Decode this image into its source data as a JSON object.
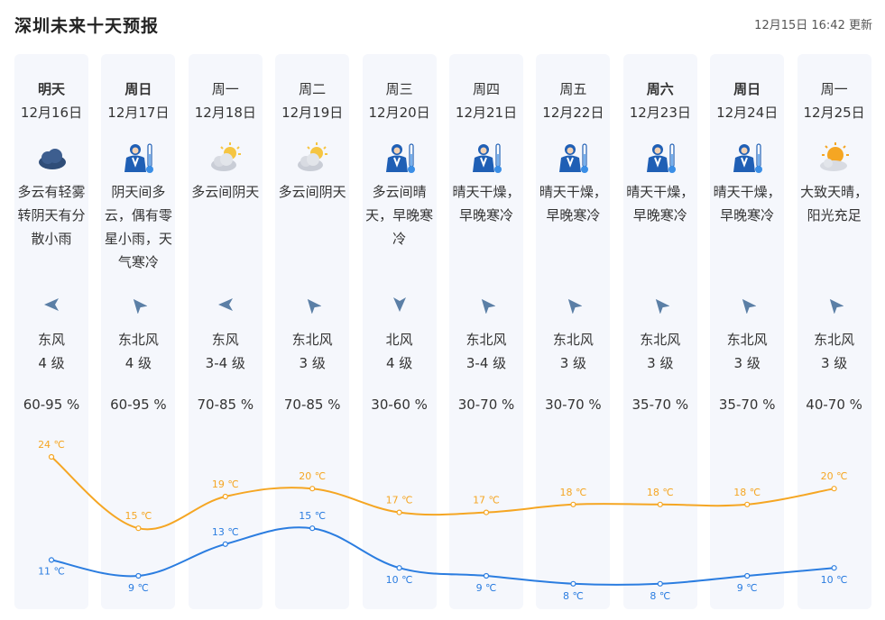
{
  "header": {
    "title": "深圳未来十天预报",
    "updated": "12月15日 16:42 更新"
  },
  "colors": {
    "high": "#f5a623",
    "low": "#2b7de0",
    "column_bg": "#f5f7fc",
    "arrow": "#5b7fa6"
  },
  "days": [
    {
      "day": "明天",
      "bold": true,
      "date": "12月16日",
      "icon": "cloudy-icon",
      "desc": "多云有轻雾转阴天有分散小雨",
      "wind_dir": "东风",
      "wind_level": "4 级",
      "humidity": "60-95 %",
      "arrow_rot": 0
    },
    {
      "day": "周日",
      "bold": true,
      "date": "12月17日",
      "icon": "cold-weather-icon",
      "desc": "阴天间多云，偶有零星小雨，天气寒冷",
      "wind_dir": "东北风",
      "wind_level": "4 级",
      "humidity": "60-95 %",
      "arrow_rot": 1
    },
    {
      "day": "周一",
      "bold": false,
      "date": "12月18日",
      "icon": "partly-cloudy-icon",
      "desc": "多云间阴天",
      "wind_dir": "东风",
      "wind_level": "3-4 级",
      "humidity": "70-85 %",
      "arrow_rot": 0
    },
    {
      "day": "周二",
      "bold": false,
      "date": "12月19日",
      "icon": "partly-cloudy-icon",
      "desc": "多云间阴天",
      "wind_dir": "东北风",
      "wind_level": "3 级",
      "humidity": "70-85 %",
      "arrow_rot": 1
    },
    {
      "day": "周三",
      "bold": false,
      "date": "12月20日",
      "icon": "cold-weather-icon",
      "desc": "多云间晴天，早晚寒冷",
      "wind_dir": "北风",
      "wind_level": "4 级",
      "humidity": "30-60 %",
      "arrow_rot": 2
    },
    {
      "day": "周四",
      "bold": false,
      "date": "12月21日",
      "icon": "cold-weather-icon",
      "desc": "晴天干燥，早晚寒冷",
      "wind_dir": "东北风",
      "wind_level": "3-4 级",
      "humidity": "30-70 %",
      "arrow_rot": 1
    },
    {
      "day": "周五",
      "bold": false,
      "date": "12月22日",
      "icon": "cold-weather-icon",
      "desc": "晴天干燥，早晚寒冷",
      "wind_dir": "东北风",
      "wind_level": "3 级",
      "humidity": "30-70 %",
      "arrow_rot": 1
    },
    {
      "day": "周六",
      "bold": true,
      "date": "12月23日",
      "icon": "cold-weather-icon",
      "desc": "晴天干燥，早晚寒冷",
      "wind_dir": "东北风",
      "wind_level": "3 级",
      "humidity": "35-70 %",
      "arrow_rot": 1
    },
    {
      "day": "周日",
      "bold": true,
      "date": "12月24日",
      "icon": "cold-weather-icon",
      "desc": "晴天干燥，早晚寒冷",
      "wind_dir": "东北风",
      "wind_level": "3 级",
      "humidity": "35-70 %",
      "arrow_rot": 1
    },
    {
      "day": "周一",
      "bold": false,
      "date": "12月25日",
      "icon": "sunny-cloudy-icon",
      "desc": "大致天晴，阳光充足",
      "wind_dir": "东北风",
      "wind_level": "3 级",
      "humidity": "40-70 %",
      "arrow_rot": 1
    }
  ],
  "chart_data": {
    "type": "line",
    "x": [
      "12月16日",
      "12月17日",
      "12月18日",
      "12月19日",
      "12月20日",
      "12月21日",
      "12月22日",
      "12月23日",
      "12月24日",
      "12月25日"
    ],
    "series": [
      {
        "name": "",
        "values": [
          24,
          15,
          19,
          20,
          17,
          17,
          18,
          18,
          18,
          20
        ],
        "labels": [
          "24 ℃",
          "15 ℃",
          "19 ℃",
          "20 ℃",
          "17 ℃",
          "17 ℃",
          "18 ℃",
          "18 ℃",
          "18 ℃",
          "20 ℃"
        ]
      },
      {
        "name": "",
        "values": [
          11,
          9,
          13,
          15,
          10,
          9,
          8,
          8,
          9,
          10
        ],
        "labels": [
          "11 ℃",
          "9 ℃",
          "13 ℃",
          "15 ℃",
          "10 ℃",
          "9 ℃",
          "8 ℃",
          "8 ℃",
          "9 ℃",
          "10 ℃"
        ]
      }
    ]
  }
}
